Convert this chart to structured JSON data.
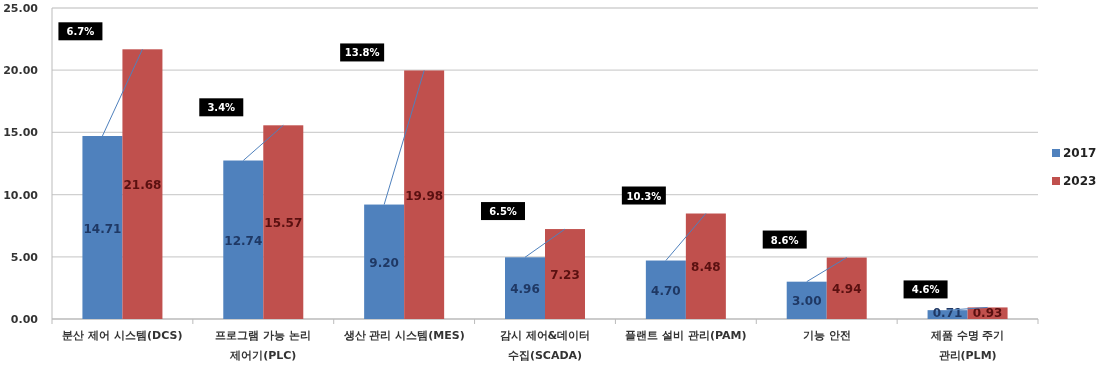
{
  "chart_data": {
    "type": "bar",
    "categories": [
      "분산 제어 시스템(DCS)",
      "프로그램 가능 논리 제어기(PLC)",
      "생산 관리 시스템(MES)",
      "감시 제어&데이터 수집(SCADA)",
      "플랜트 설비 관리(PAM)",
      "기능 안전",
      "제품 수명 주기 관리(PLM)"
    ],
    "series": [
      {
        "name": "2017",
        "color": "#4f81bd",
        "values": [
          14.71,
          12.74,
          9.2,
          4.96,
          4.7,
          3.0,
          0.71
        ],
        "value_labels": [
          "14.71",
          "12.74",
          "9.20",
          "4.96",
          "4.70",
          "3.00",
          "0.71"
        ]
      },
      {
        "name": "2023",
        "color": "#c0504d",
        "values": [
          21.68,
          15.57,
          19.98,
          7.23,
          8.48,
          4.94,
          0.93
        ],
        "value_labels": [
          "21.68",
          "15.57",
          "19.98",
          "7.23",
          "8.48",
          "4.94",
          "0.93"
        ]
      }
    ],
    "ylim": [
      0,
      25
    ],
    "yticks": [
      {
        "value": 0,
        "label": "0.00"
      },
      {
        "value": 5,
        "label": "5.00"
      },
      {
        "value": 10,
        "label": "10.00"
      },
      {
        "value": 15,
        "label": "15.00"
      },
      {
        "value": 20,
        "label": "20.00"
      },
      {
        "value": 25,
        "label": "25.00"
      }
    ],
    "annotations": [
      "6.7%",
      "3.4%",
      "13.8%",
      "6.5%",
      "10.3%",
      "8.6%",
      "4.6%"
    ],
    "grid": "y",
    "legend": "right"
  }
}
